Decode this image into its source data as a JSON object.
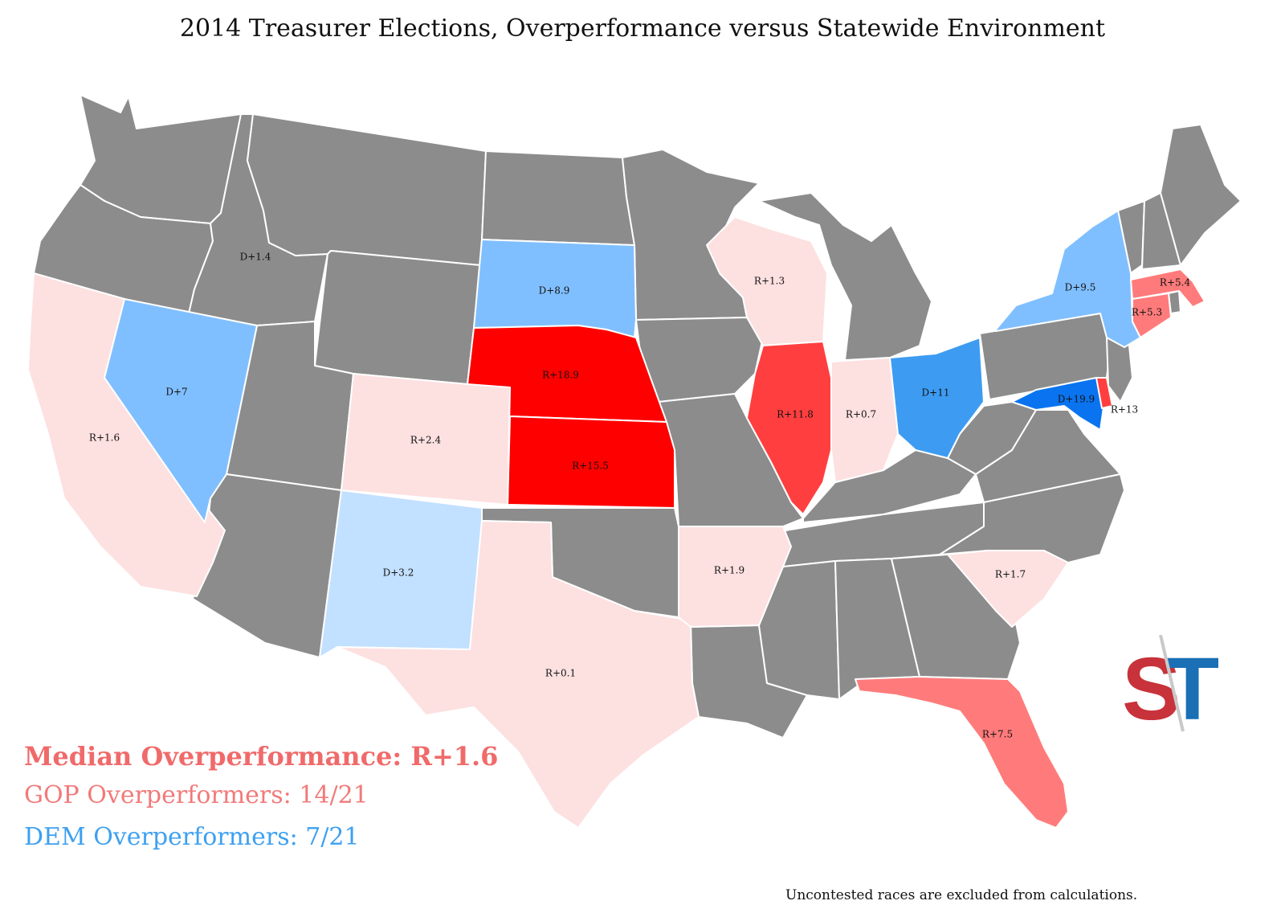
{
  "title": "2014 Treasurer Elections, Overperformance versus Statewide Environment",
  "colors": {
    "no_race": "#8c8c8c",
    "r_light": "#fde0e0",
    "r_medium": "#ff7b7b",
    "r_strong": "#ff3f3f",
    "r_max": "#ff0000",
    "d_light": "#e2f0ff",
    "d_pale": "#c2e0ff",
    "d_medium": "#80bfff",
    "d_strong": "#3d9cf2",
    "d_max": "#0a74f0"
  },
  "states": {
    "CA": "R+1.6",
    "NV": "D+7",
    "ID": "D+1.4",
    "SD": "D+8.9",
    "NE": "R+18.9",
    "KS": "R+15.5",
    "CO": "R+2.4",
    "NM": "D+3.2",
    "TX": "R+0.1",
    "AR": "R+1.9",
    "WI": "R+1.3",
    "IL": "R+11.8",
    "IN": "R+0.7",
    "OH": "D+11",
    "NY": "D+9.5",
    "MA": "R+5.4",
    "CT": "R+5.3",
    "MD": "D+19.9",
    "DE": "R+13",
    "SC": "R+1.7",
    "FL": "R+7.5"
  },
  "stats": {
    "median": "Median Overperformance: R+1.6",
    "gop": "GOP Overperformers: 14/21",
    "dem": "DEM Overperformers: 7/21"
  },
  "stats_colors": {
    "median": "#f06a6a",
    "gop": "#f27a7a",
    "dem": "#3ea0f0"
  },
  "footnote": "Uncontested races are excluded from calculations.",
  "logo": {
    "letters": "ST",
    "left_color": "#c8323a",
    "right_color": "#1a6fb5"
  }
}
